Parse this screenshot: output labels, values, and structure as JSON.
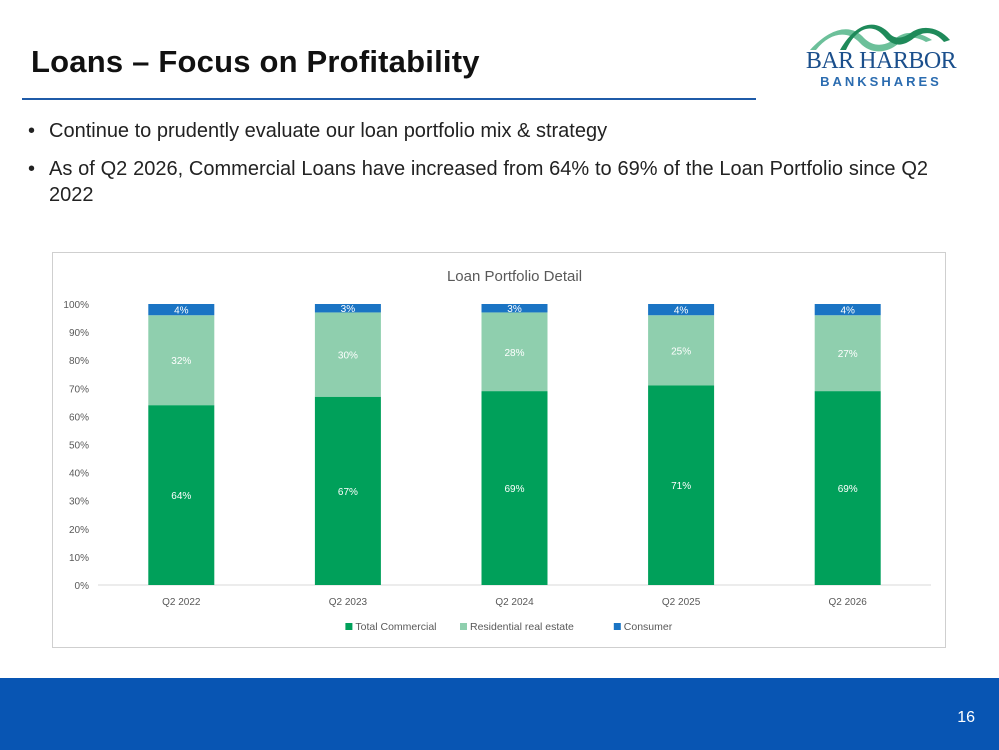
{
  "slide": {
    "title": "Loans – Focus on Profitability",
    "page_number": "16",
    "bullets": [
      "Continue to prudently evaluate our loan portfolio mix & strategy",
      "As of Q2 2026, Commercial Loans have increased from 64% to 69% of the Loan Portfolio since Q2 2022"
    ],
    "bullet_symbol": "•"
  },
  "logo": {
    "line1": "BAR HARBOR",
    "line2": "BANKSHARES",
    "colors": {
      "mountain_dark": "#1f8a5a",
      "mountain_light": "#6cc09a",
      "text_dark": "#1b4f8c",
      "text_light": "#2b6cb0"
    }
  },
  "colors": {
    "accent": "#1f5ba8",
    "footer": "#0855b3"
  },
  "chart_data": {
    "type": "bar",
    "stacked": true,
    "title": "Loan Portfolio Detail",
    "categories": [
      "Q2 2022",
      "Q2 2023",
      "Q2 2024",
      "Q2 2025",
      "Q2 2026"
    ],
    "series": [
      {
        "name": "Total Commercial",
        "values": [
          64,
          67,
          69,
          71,
          69
        ],
        "labels": [
          "64%",
          "67%",
          "69%",
          "71%",
          "69%"
        ],
        "color": "#00a05a"
      },
      {
        "name": "Residential real estate",
        "values": [
          32,
          30,
          28,
          25,
          27
        ],
        "labels": [
          "32%",
          "30%",
          "28%",
          "25%",
          "27%"
        ],
        "color": "#8fcfae"
      },
      {
        "name": "Consumer",
        "values": [
          4,
          3,
          3,
          4,
          4
        ],
        "labels": [
          "4%",
          "3%",
          "3%",
          "4%",
          "4%"
        ],
        "color": "#1a74c4"
      }
    ],
    "ylim": [
      0,
      100
    ],
    "yticks": [
      "0%",
      "10%",
      "20%",
      "30%",
      "40%",
      "50%",
      "60%",
      "70%",
      "80%",
      "90%",
      "100%"
    ],
    "legend": "bottom",
    "grid": false
  }
}
